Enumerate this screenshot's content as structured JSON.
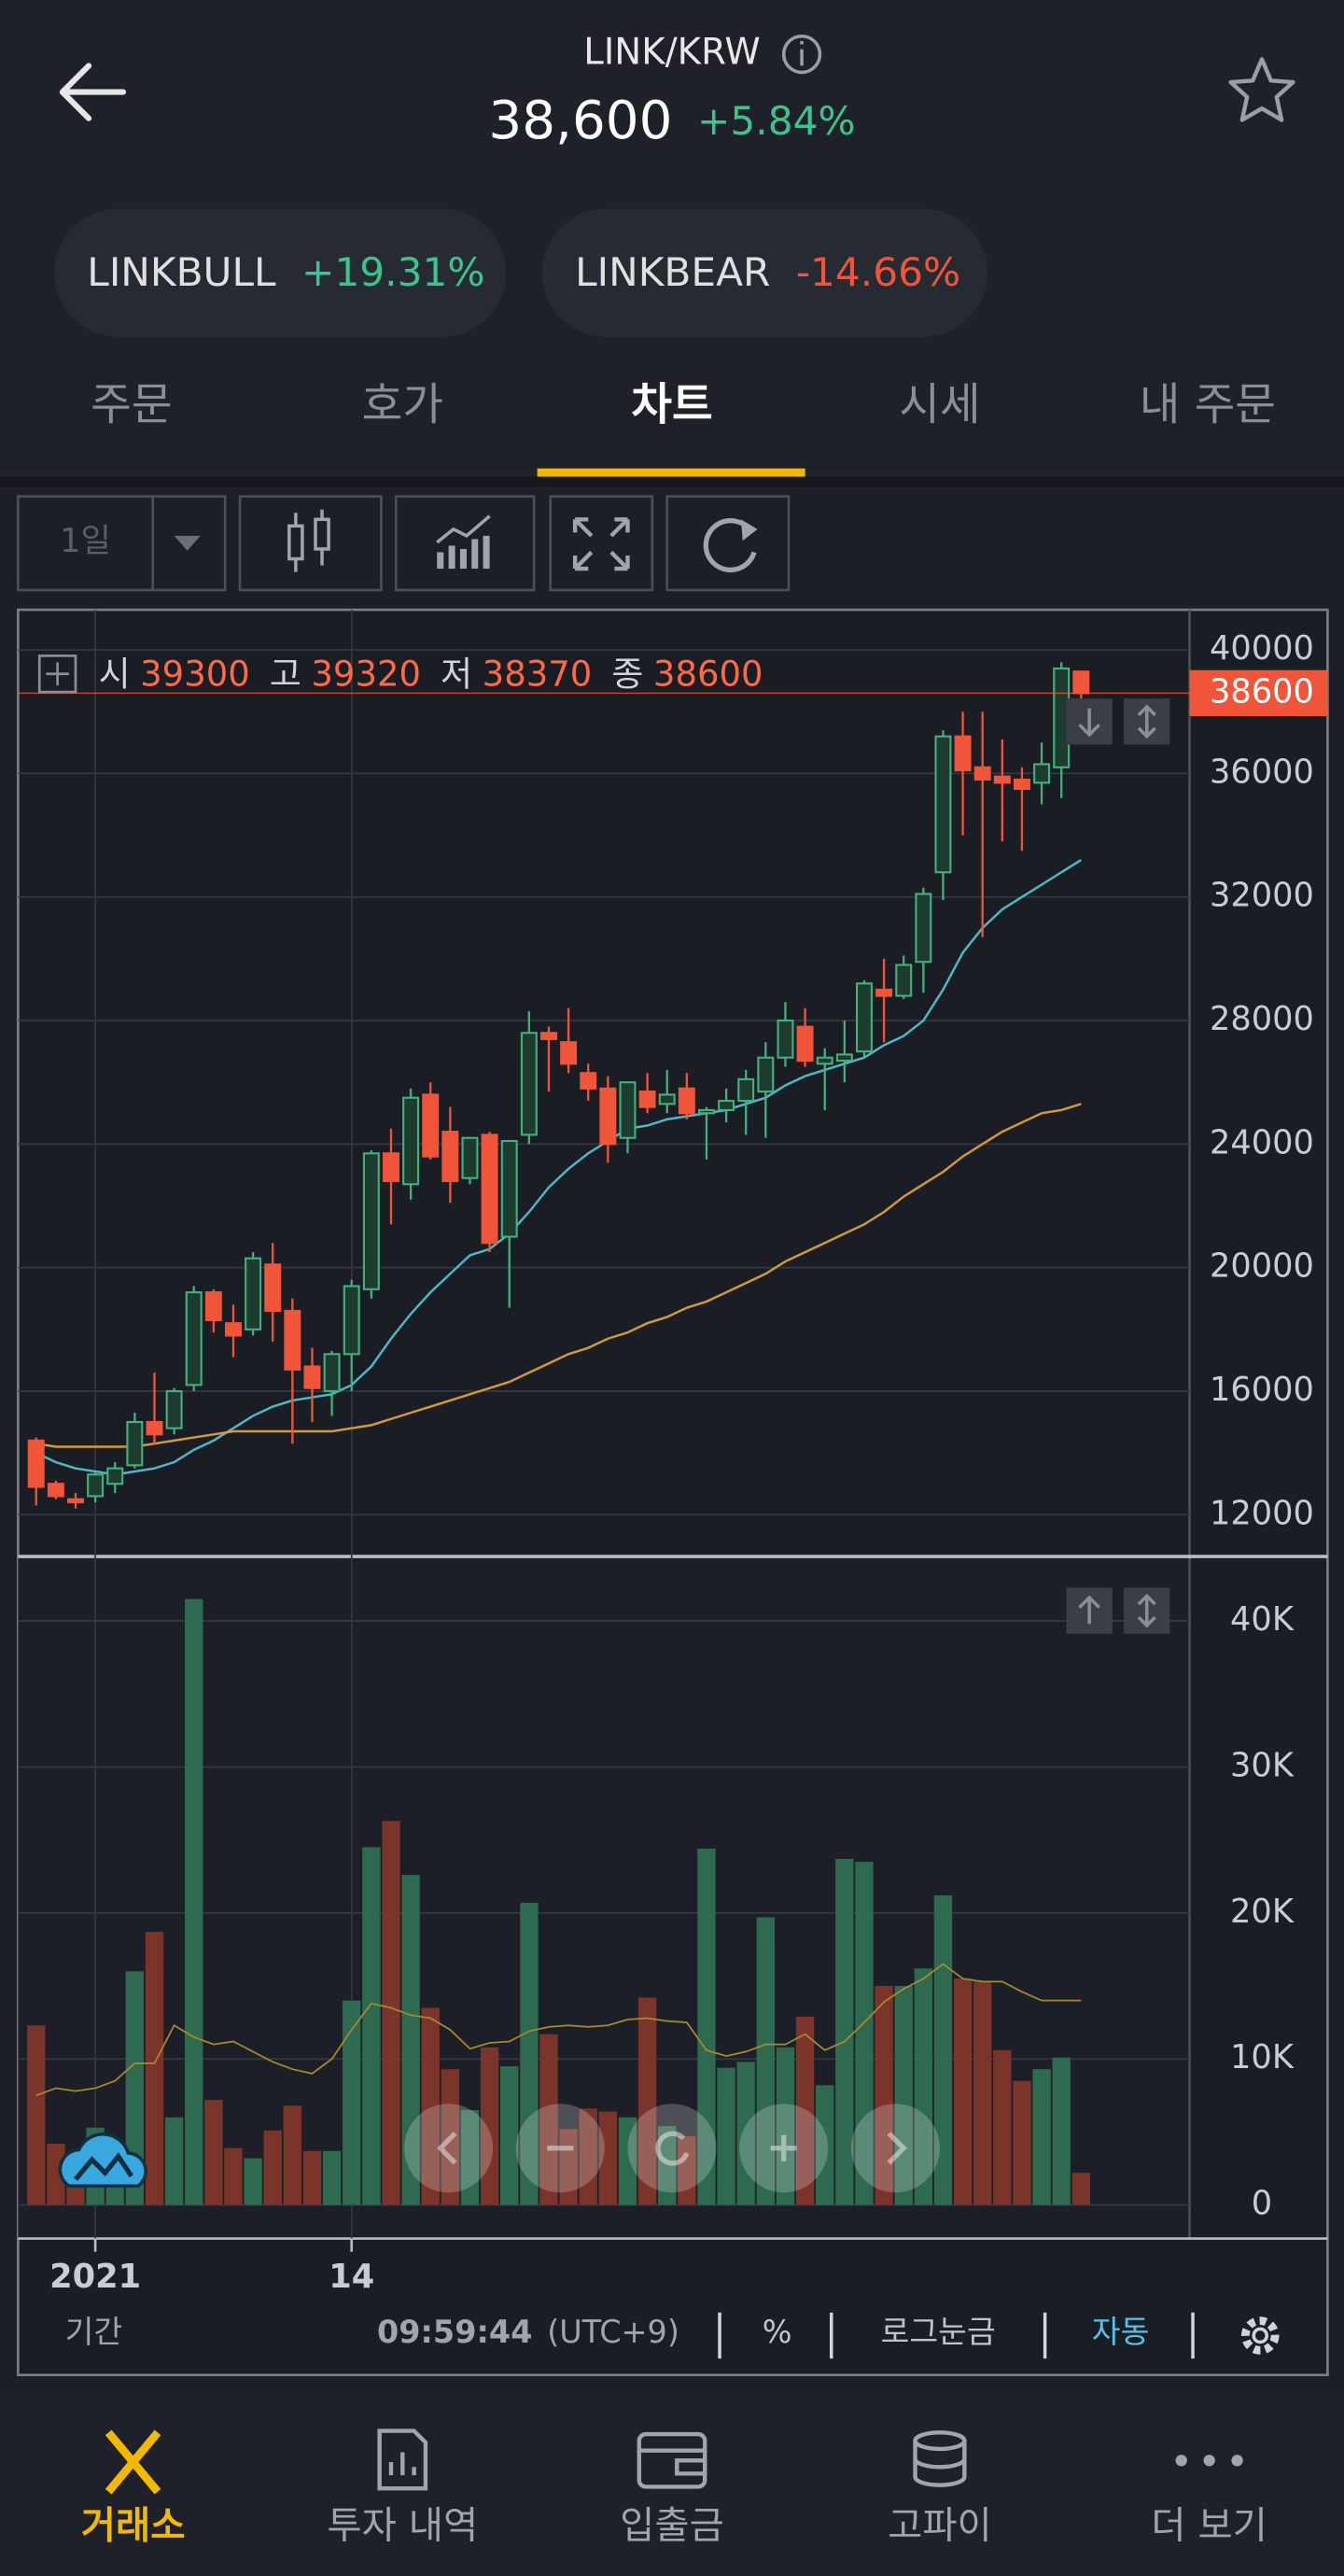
{
  "header": {
    "title": "LINK/KRW",
    "price": "38,600",
    "change": "+5.84%"
  },
  "chips": [
    {
      "name": "LINKBULL",
      "change": "+19.31%"
    },
    {
      "name": "LINKBEAR",
      "change": "-14.66%"
    }
  ],
  "tabs": [
    "주문",
    "호가",
    "차트",
    "시세",
    "내 주문"
  ],
  "toolbar": {
    "period": "1일"
  },
  "chart_data": [
    {
      "type": "candlestick",
      "ohlc_legend": [
        {
          "label": "시",
          "value": 39300
        },
        {
          "label": "고",
          "value": 39320
        },
        {
          "label": "저",
          "value": 38370
        },
        {
          "label": "종",
          "value": 38600
        }
      ],
      "open": [
        14400,
        13000,
        12500,
        12600,
        13000,
        13600,
        15000,
        14800,
        16200,
        19200,
        18200,
        18000,
        20100,
        18600,
        16800,
        16000,
        17200,
        19300,
        23700,
        22700,
        25600,
        24400,
        22900,
        24300,
        21000,
        24300,
        27600,
        27300,
        26300,
        25800,
        24200,
        25700,
        25300,
        25800,
        25000,
        25100,
        25400,
        25700,
        26800,
        27800,
        26600,
        26700,
        27000,
        29000,
        28800,
        29900,
        32800,
        37200,
        36200,
        35900,
        35800,
        35700,
        36200,
        39300
      ],
      "high": [
        14500,
        13100,
        12700,
        13400,
        13700,
        15300,
        16600,
        16100,
        19400,
        19300,
        18800,
        20500,
        20800,
        19000,
        17400,
        17300,
        19600,
        23800,
        24500,
        25800,
        26000,
        25200,
        24200,
        24400,
        24000,
        28300,
        27800,
        28400,
        26600,
        26200,
        26000,
        26300,
        26400,
        26300,
        25200,
        25800,
        26400,
        27300,
        28600,
        28400,
        27100,
        28000,
        29300,
        30000,
        30100,
        32300,
        37400,
        38000,
        38000,
        37100,
        36200,
        37000,
        39600,
        39320
      ],
      "low": [
        12300,
        12500,
        12200,
        12400,
        12700,
        13500,
        14300,
        14600,
        16000,
        17900,
        17100,
        17800,
        17600,
        14300,
        15000,
        15200,
        16000,
        19000,
        21400,
        22200,
        23500,
        22100,
        22700,
        20500,
        18700,
        24000,
        25700,
        26300,
        25400,
        23400,
        23700,
        25000,
        25000,
        24800,
        23500,
        24700,
        24300,
        24200,
        26500,
        26500,
        25100,
        26000,
        26800,
        27300,
        28700,
        28900,
        31900,
        34000,
        30700,
        33800,
        33500,
        35000,
        35200,
        38370
      ],
      "close": [
        12900,
        12600,
        12400,
        13300,
        13500,
        15000,
        14600,
        16000,
        19200,
        18300,
        17800,
        20300,
        18600,
        16700,
        16100,
        17200,
        19400,
        23700,
        22800,
        25500,
        23600,
        22800,
        24200,
        20800,
        24100,
        27600,
        27400,
        26600,
        25800,
        24000,
        26000,
        25200,
        25600,
        25000,
        25100,
        25400,
        26100,
        26800,
        28000,
        26700,
        26800,
        26900,
        29200,
        28800,
        29800,
        32100,
        37200,
        36100,
        35800,
        35700,
        35500,
        36300,
        39400,
        38600
      ],
      "series": [
        {
          "color": "#4fb8c6",
          "values": [
            14000,
            13700,
            13500,
            13400,
            13300,
            13400,
            13500,
            13700,
            14100,
            14400,
            14800,
            15200,
            15500,
            15700,
            15800,
            15900,
            16200,
            16800,
            17700,
            18500,
            19200,
            19800,
            20400,
            20600,
            21100,
            21800,
            22600,
            23200,
            23700,
            24100,
            24500,
            24600,
            24800,
            24900,
            25000,
            25100,
            25300,
            25500,
            25900,
            26200,
            26400,
            26600,
            26800,
            27200,
            27500,
            28000,
            29000,
            30200,
            31000,
            31600,
            32000,
            32400,
            32800,
            33200
          ]
        },
        {
          "color": "#d49a3a",
          "values": [
            14300,
            14200,
            14200,
            14200,
            14200,
            14200,
            14300,
            14400,
            14500,
            14600,
            14700,
            14700,
            14700,
            14700,
            14700,
            14700,
            14800,
            14900,
            15100,
            15300,
            15500,
            15700,
            15900,
            16100,
            16300,
            16600,
            16900,
            17200,
            17400,
            17700,
            17900,
            18200,
            18400,
            18700,
            18900,
            19200,
            19500,
            19800,
            20200,
            20500,
            20800,
            21100,
            21400,
            21800,
            22300,
            22700,
            23100,
            23600,
            24000,
            24400,
            24700,
            25000,
            25100,
            25300
          ]
        }
      ],
      "up_color": "#44b07e",
      "down_color": "#f0553a",
      "last_price": 38600,
      "ylim": [
        10700,
        41300
      ],
      "yticks": [
        12000,
        16000,
        20000,
        24000,
        28000,
        32000,
        36000,
        40000
      ],
      "grid": true
    },
    {
      "type": "bar",
      "categories": [
        null,
        null,
        null,
        "2021",
        null,
        null,
        null,
        null,
        null,
        null,
        null,
        null,
        null,
        null,
        null,
        null,
        "14",
        null,
        null,
        null,
        null,
        null,
        null,
        null,
        null,
        null,
        null,
        null,
        null,
        null,
        null,
        null,
        null,
        null,
        null,
        null,
        null,
        null,
        null,
        null,
        null,
        null,
        null,
        null,
        null,
        null,
        null,
        null,
        null,
        null,
        null,
        null,
        null,
        null
      ],
      "values": [
        12300,
        4200,
        3000,
        5300,
        3000,
        16000,
        18700,
        6000,
        41500,
        7200,
        3900,
        3200,
        5100,
        6800,
        3700,
        3700,
        14000,
        24500,
        26300,
        22600,
        13500,
        9300,
        6500,
        10800,
        9500,
        20700,
        11700,
        5200,
        6600,
        6400,
        6000,
        14200,
        5400,
        4700,
        24400,
        9400,
        9800,
        19700,
        10800,
        12900,
        8200,
        23700,
        23500,
        15000,
        15000,
        16200,
        21200,
        15500,
        15300,
        10600,
        8500,
        9300,
        10100,
        2200
      ],
      "up_color": "#2e6a50",
      "down_color": "#7a3429",
      "series": [
        {
          "color": "#a8892e",
          "values": [
            7500,
            8000,
            7800,
            8000,
            8500,
            9700,
            9700,
            12300,
            11500,
            11000,
            11200,
            10500,
            9800,
            9300,
            9000,
            10000,
            12000,
            13800,
            13500,
            13000,
            12800,
            12000,
            10700,
            11100,
            11200,
            11900,
            12200,
            12300,
            12200,
            12300,
            12700,
            12800,
            12600,
            12500,
            10600,
            10200,
            10500,
            11000,
            11000,
            11700,
            10600,
            11200,
            12500,
            13900,
            14800,
            15500,
            16500,
            15500,
            15300,
            15300,
            14600,
            14000,
            14000,
            14000
          ]
        }
      ],
      "ylim": [
        -2300,
        44300
      ],
      "yticks": [
        0,
        {
          "value": 10000,
          "label": "10K"
        },
        {
          "value": 20000,
          "label": "20K"
        },
        {
          "value": 30000,
          "label": "30K"
        },
        {
          "value": 40000,
          "label": "40K"
        }
      ],
      "grid": true
    }
  ],
  "footer": {
    "period": "기간",
    "time": "09:59:44",
    "timezone": "(UTC+9)",
    "percent": "%",
    "log": "로그눈금",
    "auto": "자동"
  },
  "nav": [
    "거래소",
    "투자 내역",
    "입출금",
    "고파이",
    "더 보기"
  ]
}
